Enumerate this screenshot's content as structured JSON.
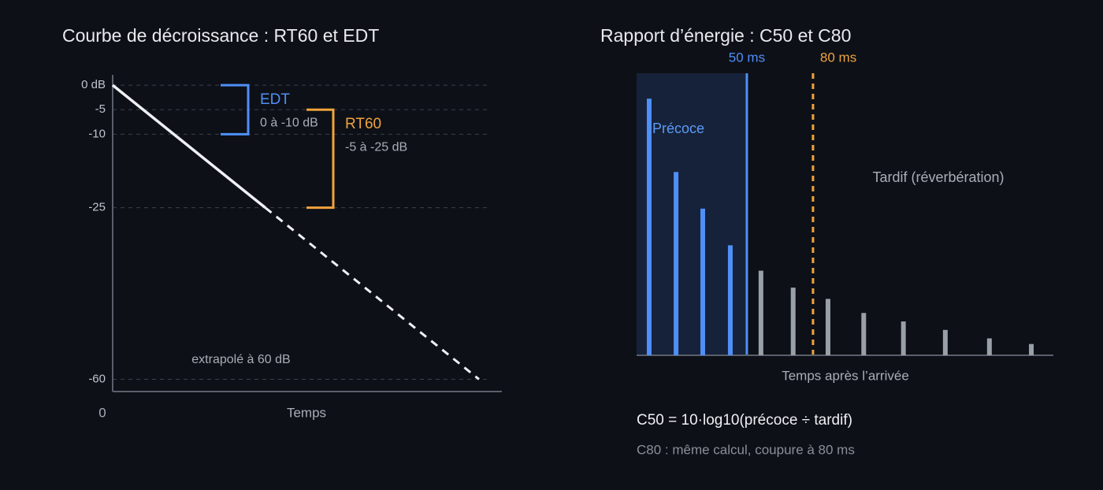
{
  "chart_data": [
    {
      "type": "line",
      "title": "Courbe de décroissance : RT60 et EDT",
      "x_label": "Temps",
      "xlim": [
        0,
        64
      ],
      "xticks": [
        0
      ],
      "ylim": [
        -62.5,
        0.5
      ],
      "yticks": [
        {
          "value": 0,
          "label": "0 dB"
        },
        -5,
        -10,
        -25,
        -60
      ],
      "grid": true,
      "series": [
        {
          "color": "#eef0f4",
          "dashed": false,
          "x": [
            0,
            25
          ],
          "values": [
            0,
            -25
          ]
        },
        {
          "color": "#eef0f4",
          "dashed": true,
          "x": [
            25,
            60
          ],
          "values": [
            -25,
            -60
          ]
        }
      ],
      "brackets": [
        {
          "label": "EDT",
          "range_label": "0 à -10 dB",
          "from": 0,
          "to": -10,
          "color": "#4f8ff7"
        },
        {
          "label": "RT60",
          "range_label": "-5 à -25 dB",
          "from": -5,
          "to": -25,
          "color": "#f0a33c"
        }
      ],
      "annotation": "extrapolé à 60 dB"
    },
    {
      "type": "bar",
      "title": "Rapport d’énergie : C50 et C80",
      "x_label": "Temps après l’arrivée",
      "xlim": [
        0,
        189
      ],
      "ylim": [
        0,
        100
      ],
      "series": [
        {
          "name": "Précoce",
          "color": "#4f8ff7",
          "x": [
            5.7,
            17.9,
            30,
            42.5
          ],
          "values": [
            91,
            65,
            52,
            39
          ]
        },
        {
          "name": "Tardif (réverbération)",
          "color": "#9aa0a8",
          "x": [
            56.4,
            71,
            86.8,
            103,
            121,
            140,
            160,
            179
          ],
          "values": [
            30,
            24,
            20,
            15,
            12,
            9,
            6,
            4
          ]
        }
      ],
      "cutoffs": [
        {
          "value": 50,
          "label": "50 ms",
          "color": "#4f8ff7",
          "dashed": false
        },
        {
          "value": 80,
          "label": "80 ms",
          "color": "#f0a33c",
          "dashed": true
        }
      ],
      "formula": "C50 = 10·log10(précoce ÷ tardif)",
      "note": "C80 : même calcul, coupure à 80 ms"
    }
  ]
}
